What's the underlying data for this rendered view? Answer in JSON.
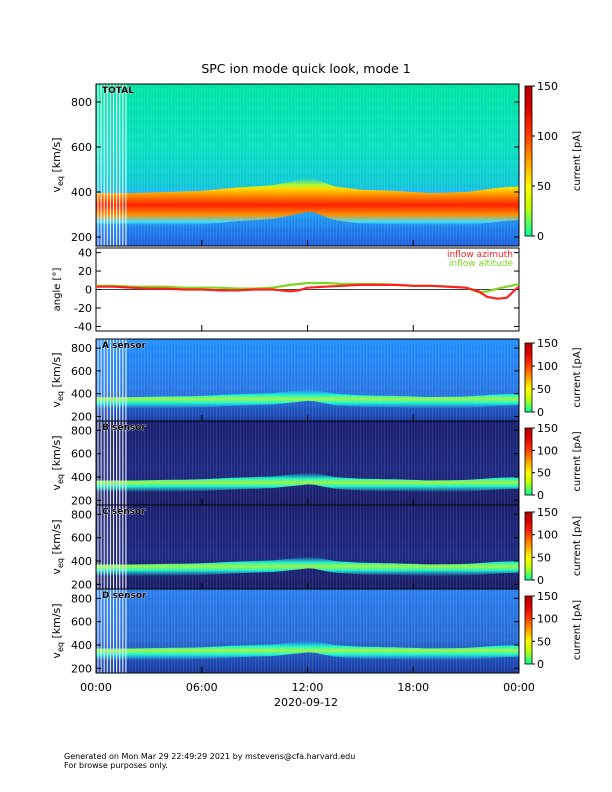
{
  "title": "SPC ion mode quick look, mode 1",
  "footer": {
    "line1": "Generated on Mon Mar 29 22:49:29 2021 by mstevens@cfa.harvard.edu",
    "line2": "For browse purposes only."
  },
  "colors": {
    "angle_azimuth": "#ff2020",
    "angle_altitude": "#7fd620",
    "colormap": [
      "#00ffa0",
      "#ffff00",
      "#ff9900",
      "#ff2000",
      "#e00000",
      "#b80000"
    ],
    "background_low": [
      "#1a1a70",
      "#1f4fc0",
      "#2aa0ff",
      "#18e0e0"
    ]
  },
  "chart_data": [
    {
      "type": "heatmap",
      "panel": "total",
      "label": "TOTAL",
      "ylabel": "v",
      "ylabel_sub": "eq",
      "ylabel_unit": "[km/s]",
      "ylim": [
        160,
        880
      ],
      "yticks": [
        200,
        400,
        600,
        800
      ],
      "xlim": [
        0,
        24
      ],
      "peak_velocity_kms": [
        [
          0,
          320
        ],
        [
          2,
          320
        ],
        [
          4,
          325
        ],
        [
          6,
          330
        ],
        [
          8,
          345
        ],
        [
          10,
          355
        ],
        [
          11.3,
          375
        ],
        [
          12.2,
          390
        ],
        [
          13.5,
          350
        ],
        [
          15,
          335
        ],
        [
          17,
          330
        ],
        [
          19,
          320
        ],
        [
          21,
          325
        ],
        [
          23,
          345
        ],
        [
          24,
          350
        ]
      ],
      "colorbar": {
        "label": "current [pA]",
        "ticks": [
          0,
          50,
          100,
          150
        ],
        "range": [
          0,
          150
        ]
      }
    },
    {
      "type": "line",
      "panel": "angles",
      "ylabel": "angle [°]",
      "ylim": [
        -45,
        45
      ],
      "yticks": [
        -40,
        -20,
        0,
        20,
        40
      ],
      "xlim": [
        0,
        24
      ],
      "series": [
        {
          "name": "inflow azimuth",
          "color": "#ff2020",
          "x": [
            0,
            1,
            2,
            3,
            4,
            5,
            6,
            7,
            8,
            9,
            10,
            11,
            11.5,
            12,
            13,
            14,
            15,
            16,
            17,
            18,
            19,
            20,
            21,
            21.7,
            22.2,
            22.8,
            23.3,
            23.8,
            24
          ],
          "y": [
            3,
            3,
            2,
            1,
            1,
            0,
            0,
            -1,
            -1,
            0,
            0,
            -2,
            -1,
            2,
            3,
            4,
            5,
            5,
            5,
            4,
            4,
            3,
            2,
            -2,
            -8,
            -10,
            -9,
            0,
            3
          ]
        },
        {
          "name": "inflow altitude",
          "color": "#7fd620",
          "x": [
            0,
            1,
            2,
            3,
            4,
            5,
            6,
            7,
            8,
            9,
            10,
            11,
            11.5,
            12,
            13,
            14,
            15,
            16,
            17,
            18,
            19,
            20,
            21,
            21.7,
            22.2,
            22.8,
            23.3,
            23.8,
            24
          ],
          "y": [
            4,
            4,
            3,
            3,
            3,
            2,
            2,
            2,
            1,
            1,
            2,
            5,
            6,
            7,
            7,
            6,
            6,
            6,
            5,
            4,
            4,
            3,
            2,
            -3,
            -2,
            1,
            3,
            5,
            6
          ]
        }
      ]
    },
    {
      "type": "heatmap",
      "panel": "sensor_a",
      "label": "A sensor",
      "ylabel": "v",
      "ylabel_sub": "eq",
      "ylabel_unit": "[km/s]",
      "ylim": [
        160,
        880
      ],
      "yticks": [
        200,
        400,
        600,
        800
      ],
      "xlim": [
        0,
        24
      ],
      "colorbar": {
        "label": "current [pA]",
        "ticks": [
          0,
          50,
          100,
          150
        ],
        "range": [
          0,
          150
        ]
      }
    },
    {
      "type": "heatmap",
      "panel": "sensor_b",
      "label": "B sensor",
      "ylabel": "v",
      "ylabel_sub": "eq",
      "ylabel_unit": "[km/s]",
      "ylim": [
        160,
        880
      ],
      "yticks": [
        200,
        400,
        600,
        800
      ],
      "xlim": [
        0,
        24
      ],
      "colorbar": {
        "label": "current [pA]",
        "ticks": [
          0,
          50,
          100,
          150
        ],
        "range": [
          0,
          150
        ]
      }
    },
    {
      "type": "heatmap",
      "panel": "sensor_c",
      "label": "C sensor",
      "ylabel": "v",
      "ylabel_sub": "eq",
      "ylabel_unit": "[km/s]",
      "ylim": [
        160,
        880
      ],
      "yticks": [
        200,
        400,
        600,
        800
      ],
      "xlim": [
        0,
        24
      ],
      "colorbar": {
        "label": "current [pA]",
        "ticks": [
          0,
          50,
          100,
          150
        ],
        "range": [
          0,
          150
        ]
      }
    },
    {
      "type": "heatmap",
      "panel": "sensor_d",
      "label": "D sensor",
      "ylabel": "v",
      "ylabel_sub": "eq",
      "ylabel_unit": "[km/s]",
      "ylim": [
        160,
        880
      ],
      "yticks": [
        200,
        400,
        600,
        800
      ],
      "xlim": [
        0,
        24
      ],
      "colorbar": {
        "label": "current [pA]",
        "ticks": [
          0,
          50,
          100,
          150
        ],
        "range": [
          0,
          150
        ]
      }
    }
  ],
  "x_axis": {
    "tick_labels": [
      "00:00",
      "06:00",
      "12:00",
      "18:00",
      "00:00"
    ],
    "tick_hours": [
      0,
      6,
      12,
      18,
      24
    ],
    "date_label": "2020-09-12"
  }
}
